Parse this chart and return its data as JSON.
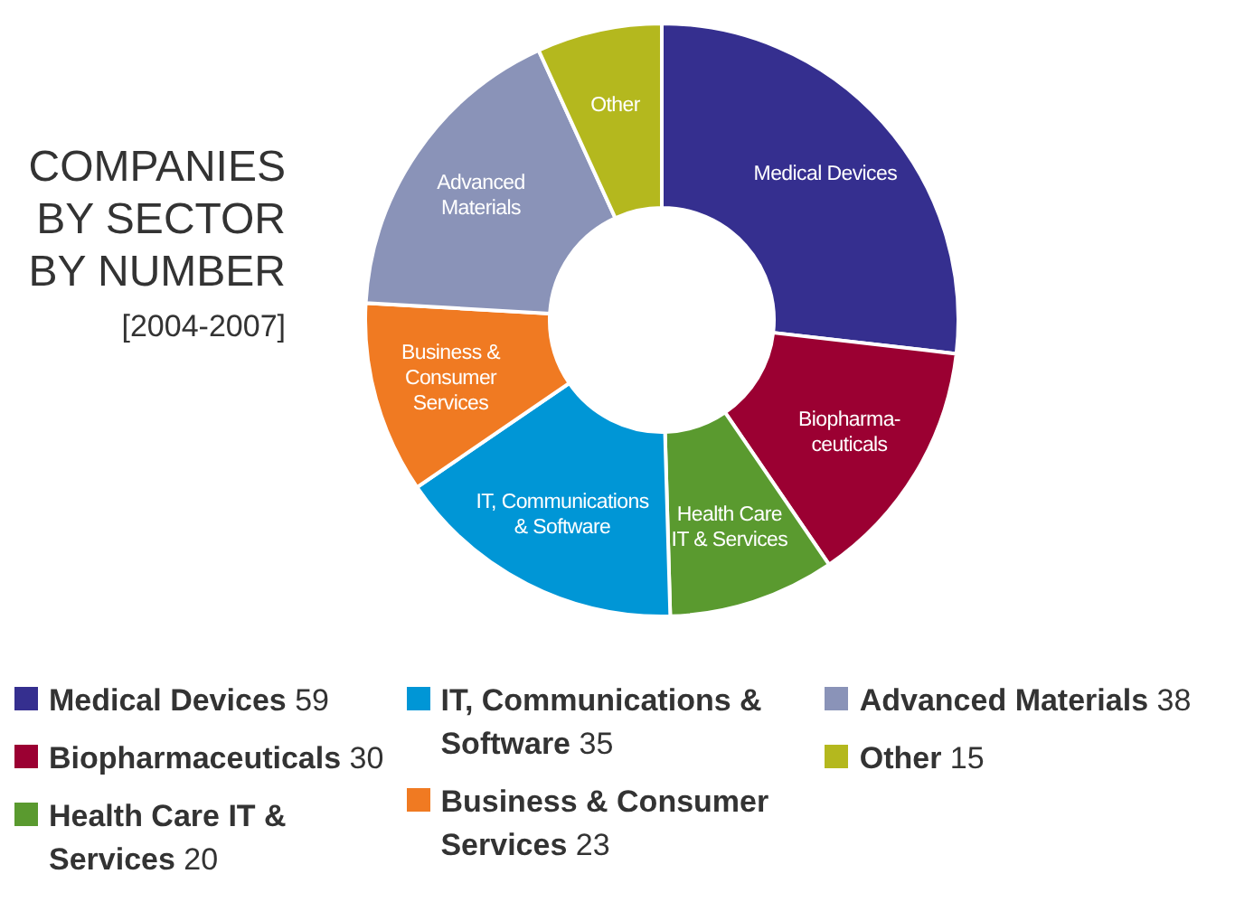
{
  "chart_data": {
    "type": "donut",
    "title": "COMPANIES\nBY SECTOR\nBY NUMBER",
    "subtitle": "[2004-2007]",
    "categories": [
      "Medical Devices",
      "Biopharmaceuticals",
      "Health Care IT & Services",
      "IT, Communications & Software",
      "Business & Consumer Services",
      "Advanced Materials",
      "Other"
    ],
    "values": [
      59,
      30,
      20,
      35,
      23,
      38,
      15
    ],
    "colors": [
      "#352f8f",
      "#9b0032",
      "#5a9a2f",
      "#0096d6",
      "#f07a22",
      "#8a93b8",
      "#b4b81e"
    ],
    "annotations": [
      "Medical Devices",
      "Biopharma-\nceuticals",
      "Health Care\nIT & Services",
      "IT, Communications\n& Software",
      "Business &\nConsumer\nServices",
      "Advanced\nMaterials",
      "Other"
    ],
    "data_labels": true,
    "legend": "bottom"
  }
}
